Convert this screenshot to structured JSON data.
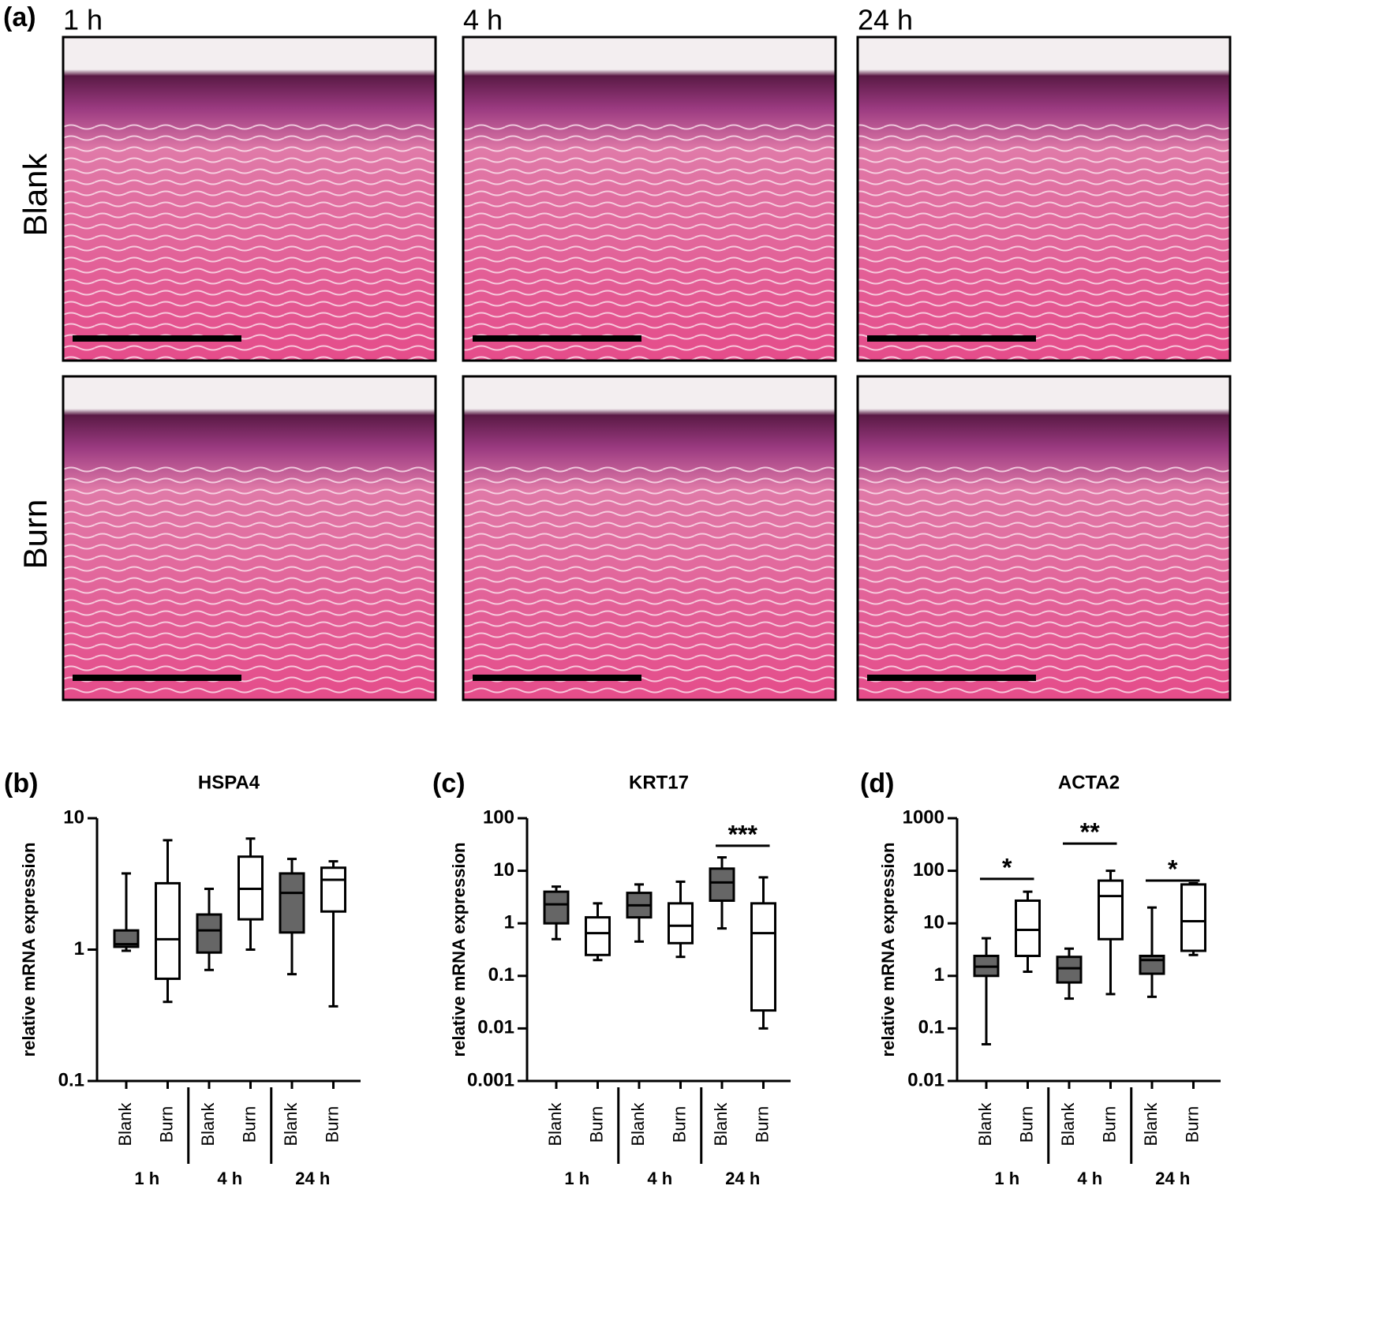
{
  "panel_a": {
    "label": "(a)",
    "columns": [
      "1 h",
      "4 h",
      "24 h"
    ],
    "rows": [
      "Blank",
      "Burn"
    ]
  },
  "chart_data": [
    {
      "type": "box",
      "panel_label": "(b)",
      "title": "HSPA4",
      "ylabel": "relative mRNA expression",
      "categories": [
        "Blank",
        "Burn",
        "Blank",
        "Burn",
        "Blank",
        "Burn"
      ],
      "groups": [
        "1 h",
        "4 h",
        "24 h"
      ],
      "colors": [
        "#666666",
        "#ffffff",
        "#666666",
        "#ffffff",
        "#666666",
        "#ffffff"
      ],
      "stats": [
        [
          0.98,
          1.05,
          1.1,
          1.4,
          3.8
        ],
        [
          0.4,
          0.6,
          1.2,
          3.2,
          6.8
        ],
        [
          0.7,
          0.95,
          1.4,
          1.85,
          2.9
        ],
        [
          1.0,
          1.7,
          2.9,
          5.1,
          7.0
        ],
        [
          0.65,
          1.35,
          2.7,
          3.8,
          4.9
        ],
        [
          0.37,
          1.95,
          3.4,
          4.2,
          4.7
        ]
      ],
      "significance": [
        null,
        null,
        null
      ],
      "significance_y": [
        null,
        null,
        null
      ],
      "log": true,
      "ylim": [
        0.1,
        10
      ],
      "yticks": [
        0.1,
        1,
        10
      ]
    },
    {
      "type": "box",
      "panel_label": "(c)",
      "title": "KRT17",
      "ylabel": "relative mRNA expression",
      "categories": [
        "Blank",
        "Burn",
        "Blank",
        "Burn",
        "Blank",
        "Burn"
      ],
      "groups": [
        "1 h",
        "4 h",
        "24 h"
      ],
      "colors": [
        "#666666",
        "#ffffff",
        "#666666",
        "#ffffff",
        "#666666",
        "#ffffff"
      ],
      "stats": [
        [
          0.5,
          1.0,
          2.3,
          4.0,
          5.0
        ],
        [
          0.2,
          0.25,
          0.65,
          1.3,
          2.4
        ],
        [
          0.45,
          1.3,
          2.2,
          3.8,
          5.5
        ],
        [
          0.23,
          0.42,
          0.9,
          2.4,
          6.2
        ],
        [
          0.8,
          2.7,
          6.0,
          11,
          18
        ],
        [
          0.01,
          0.022,
          0.65,
          2.4,
          7.5
        ]
      ],
      "significance": [
        null,
        null,
        "***"
      ],
      "significance_y": [
        null,
        null,
        30
      ],
      "log": true,
      "ylim": [
        0.001,
        100
      ],
      "yticks": [
        0.001,
        0.01,
        0.1,
        1,
        10,
        100
      ]
    },
    {
      "type": "box",
      "panel_label": "(d)",
      "title": "ACTA2",
      "ylabel": "relative mRNA expression",
      "categories": [
        "Blank",
        "Burn",
        "Blank",
        "Burn",
        "Blank",
        "Burn"
      ],
      "groups": [
        "1 h",
        "4 h",
        "24 h"
      ],
      "colors": [
        "#666666",
        "#ffffff",
        "#666666",
        "#ffffff",
        "#666666",
        "#ffffff"
      ],
      "stats": [
        [
          0.05,
          1.0,
          1.5,
          2.4,
          5.2
        ],
        [
          1.2,
          2.4,
          7.5,
          27,
          40
        ],
        [
          0.37,
          0.75,
          1.4,
          2.3,
          3.3
        ],
        [
          0.45,
          5,
          33,
          65,
          100
        ],
        [
          0.4,
          1.1,
          2,
          2.4,
          20
        ],
        [
          2.5,
          3,
          11,
          55,
          58
        ]
      ],
      "significance": [
        "*",
        "**",
        "*"
      ],
      "significance_y": [
        70,
        330,
        65
      ],
      "log": true,
      "ylim": [
        0.01,
        1000
      ],
      "yticks": [
        0.01,
        0.1,
        1,
        10,
        100,
        1000
      ]
    }
  ]
}
